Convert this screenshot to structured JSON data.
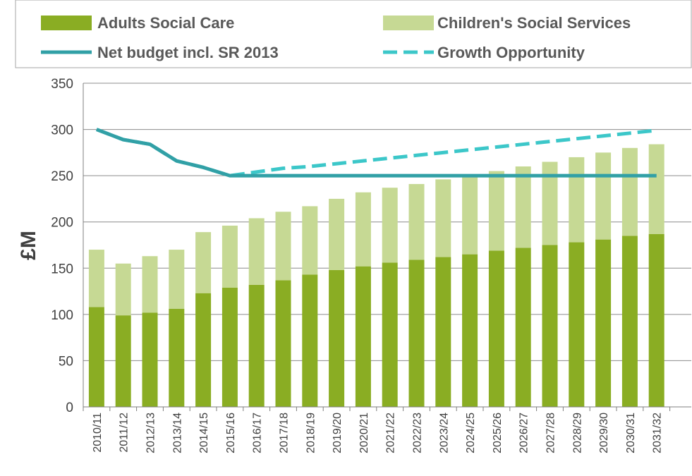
{
  "chart_data": {
    "type": "bar",
    "stacked": true,
    "ylabel": "£M",
    "xlabel": "",
    "ylim": [
      0,
      350
    ],
    "yticks": [
      0,
      50,
      100,
      150,
      200,
      250,
      300,
      350
    ],
    "grid": "horizontal",
    "legend_position": "top",
    "categories": [
      "2010/11",
      "2011/12",
      "2012/13",
      "2013/14",
      "2014/15",
      "2015/16",
      "2016/17",
      "2017/18",
      "2018/19",
      "2019/20",
      "2020/21",
      "2021/22",
      "2022/23",
      "2023/24",
      "2024/25",
      "2025/26",
      "2026/27",
      "2027/28",
      "2028/29",
      "2029/30",
      "2030/31",
      "2031/32"
    ],
    "series": [
      {
        "name": "Adults Social Care",
        "kind": "bar",
        "color": "#8aad23",
        "values": [
          108,
          99,
          102,
          106,
          123,
          129,
          132,
          137,
          143,
          148,
          152,
          156,
          159,
          162,
          165,
          169,
          172,
          175,
          178,
          181,
          185,
          187
        ]
      },
      {
        "name": "Children's Social Services",
        "kind": "bar",
        "color": "#c6d994",
        "values": [
          62,
          56,
          61,
          64,
          66,
          67,
          72,
          74,
          74,
          77,
          80,
          81,
          82,
          84,
          84,
          86,
          88,
          90,
          92,
          94,
          95,
          97
        ]
      },
      {
        "name": "Net budget incl. SR 2013",
        "kind": "line",
        "color": "#31a0a6",
        "dash": "solid",
        "values": [
          300,
          289,
          284,
          266,
          259,
          250,
          250,
          250,
          250,
          250,
          250,
          250,
          250,
          250,
          250,
          250,
          250,
          250,
          250,
          250,
          250,
          250
        ]
      },
      {
        "name": "Growth Opportunity",
        "kind": "line",
        "color": "#3cc7c9",
        "dash": "dashed",
        "values": [
          300,
          289,
          284,
          266,
          259,
          250,
          254,
          258,
          260,
          263,
          266,
          269,
          272,
          275,
          278,
          281,
          284,
          287,
          290,
          293,
          296,
          299
        ]
      }
    ]
  }
}
